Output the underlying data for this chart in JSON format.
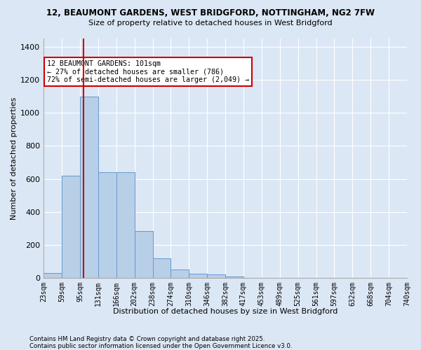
{
  "title1": "12, BEAUMONT GARDENS, WEST BRIDGFORD, NOTTINGHAM, NG2 7FW",
  "title2": "Size of property relative to detached houses in West Bridgford",
  "xlabel": "Distribution of detached houses by size in West Bridgford",
  "ylabel": "Number of detached properties",
  "footnote1": "Contains HM Land Registry data © Crown copyright and database right 2025.",
  "footnote2": "Contains public sector information licensed under the Open Government Licence v3.0.",
  "bin_labels": [
    "23sqm",
    "59sqm",
    "95sqm",
    "131sqm",
    "166sqm",
    "202sqm",
    "238sqm",
    "274sqm",
    "310sqm",
    "346sqm",
    "382sqm",
    "417sqm",
    "453sqm",
    "489sqm",
    "525sqm",
    "561sqm",
    "597sqm",
    "632sqm",
    "668sqm",
    "704sqm",
    "740sqm"
  ],
  "bar_heights": [
    30,
    620,
    1100,
    640,
    640,
    285,
    120,
    50,
    25,
    20,
    10,
    0,
    0,
    0,
    0,
    0,
    0,
    0,
    0,
    0
  ],
  "bar_color": "#b8cfe8",
  "bar_edge_color": "#6699cc",
  "background_color": "#dce7f5",
  "grid_color": "#ffffff",
  "vline_color": "#cc0000",
  "vline_position": 2.2,
  "annotation_text": "12 BEAUMONT GARDENS: 101sqm\n← 27% of detached houses are smaller (786)\n72% of semi-detached houses are larger (2,049) →",
  "annotation_box_color": "#ffffff",
  "annotation_box_edge": "#cc0000",
  "ylim": [
    0,
    1450
  ],
  "yticks": [
    0,
    200,
    400,
    600,
    800,
    1000,
    1200,
    1400
  ],
  "num_bars": 20
}
